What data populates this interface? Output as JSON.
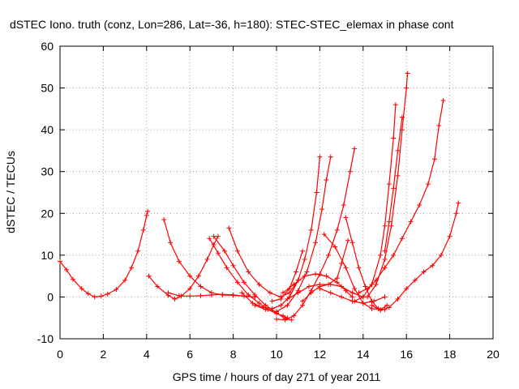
{
  "chart_data": {
    "type": "scatter",
    "title": "dSTEC Iono. truth (conz, Lon=286, Lat=-36, h=180): STEC-STEC_elemax in phase cont",
    "xlabel": "GPS time / hours of day 271 of year 2011",
    "ylabel": "dSTEC  / TECUs",
    "xlim": [
      0,
      20
    ],
    "ylim": [
      -10,
      60
    ],
    "xticks": [
      0,
      2,
      4,
      6,
      8,
      10,
      12,
      14,
      16,
      18,
      20
    ],
    "yticks": [
      -10,
      0,
      10,
      20,
      30,
      40,
      50,
      60
    ],
    "grid": true,
    "marker": "+",
    "color": "#ff0000",
    "series": [
      {
        "x": [
          0,
          0.3,
          0.6,
          1.0,
          1.3,
          1.6,
          1.9,
          2.2,
          2.6,
          3.0,
          3.3,
          3.6,
          3.85,
          4.0,
          4.05
        ],
        "y": [
          8.5,
          6.5,
          4.2,
          2,
          0.8,
          0,
          0.2,
          0.7,
          1.8,
          4,
          7,
          11,
          16,
          19.5,
          20.5
        ]
      },
      {
        "x": [
          4.1,
          4.5,
          5.0,
          5.3,
          5.6,
          6.0,
          6.4,
          6.8,
          7.1,
          7.3
        ],
        "y": [
          5,
          2.5,
          0.4,
          -0.5,
          0.2,
          2,
          5,
          9,
          12.5,
          14.5
        ]
      },
      {
        "x": [
          4.8,
          5.1,
          5.5,
          6.0,
          6.5,
          7.0,
          7.5,
          8.0,
          8.5,
          9.0
        ],
        "y": [
          18.5,
          13,
          8.5,
          5,
          2.5,
          1,
          0.5,
          0.4,
          0.2,
          0
        ]
      },
      {
        "x": [
          5.0,
          5.5,
          6.0,
          6.5,
          7.0,
          7.5,
          8.0,
          8.5,
          9.0
        ],
        "y": [
          1,
          0.3,
          0.2,
          0.3,
          0.5,
          0.6,
          0.5,
          0.2,
          0
        ]
      },
      {
        "x": [
          6.9,
          7.3,
          7.7,
          8.2,
          8.7,
          9.2,
          9.6,
          10.0,
          10.3,
          10.5
        ],
        "y": [
          14,
          10.5,
          7,
          3.5,
          0.5,
          -1.5,
          -3,
          -4,
          -4.5,
          -5
        ]
      },
      {
        "x": [
          7.1,
          7.6,
          8.0,
          8.5,
          9.0,
          9.5,
          10.0,
          10.4,
          10.7
        ],
        "y": [
          14.5,
          11,
          7.5,
          3.5,
          0.5,
          -2,
          -3.8,
          -5.2,
          -5.5
        ]
      },
      {
        "x": [
          7.8,
          8.2,
          8.7,
          9.2,
          9.7,
          10.2,
          10.6,
          11.0
        ],
        "y": [
          16.5,
          11,
          6,
          3,
          1,
          0,
          1,
          4
        ]
      },
      {
        "x": [
          8.4,
          8.9,
          9.4,
          9.8,
          10.2,
          10.6,
          11.0,
          11.3,
          11.6,
          11.85,
          12.0
        ],
        "y": [
          1,
          -1.5,
          -2.5,
          -2.8,
          -2,
          0,
          4,
          9,
          16,
          25,
          33.5
        ]
      },
      {
        "x": [
          9.0,
          9.5,
          10.0,
          10.5,
          11.0,
          11.4,
          11.8,
          12.1,
          12.3,
          12.5
        ],
        "y": [
          -2,
          -3,
          -3.5,
          -2,
          1.5,
          6,
          13,
          21,
          28,
          33.5
        ]
      },
      {
        "x": [
          9.8,
          10.2,
          10.6,
          10.9,
          11.2
        ],
        "y": [
          -1,
          -0.5,
          2,
          6,
          11
        ]
      },
      {
        "x": [
          10.0,
          10.4,
          10.8,
          11.2,
          11.6,
          12.0,
          12.4,
          12.8,
          13.1,
          13.4,
          13.6
        ],
        "y": [
          -5.3,
          -5.5,
          -4.5,
          -2,
          1.5,
          5.5,
          10,
          16,
          22,
          30,
          35.5
        ]
      },
      {
        "x": [
          10.3,
          10.8,
          11.3,
          11.8,
          12.3,
          12.8,
          13.2,
          13.5
        ],
        "y": [
          1,
          3,
          5,
          5.5,
          5,
          3.5,
          1.5,
          0
        ]
      },
      {
        "x": [
          10.5,
          11.0,
          11.5,
          12.0,
          12.5,
          13.0,
          13.5,
          14.0
        ],
        "y": [
          -0.5,
          1,
          2.5,
          3,
          3,
          2.5,
          1,
          0
        ]
      },
      {
        "x": [
          11.2,
          11.6,
          12.0,
          12.4,
          12.8,
          13.0,
          13.3
        ],
        "y": [
          -1,
          1,
          2.5,
          3,
          4.5,
          8,
          13.5
        ]
      },
      {
        "x": [
          12.0,
          12.5,
          13.0,
          13.5,
          14.0,
          14.5,
          15.0
        ],
        "y": [
          2,
          1,
          0,
          -1,
          -1.5,
          -1,
          0
        ]
      },
      {
        "x": [
          12.2,
          12.7,
          13.2,
          13.6,
          14.0,
          14.4,
          14.8,
          15.1
        ],
        "y": [
          15,
          12,
          7,
          2,
          -1.5,
          -2.8,
          -3,
          -2
        ]
      },
      {
        "x": [
          13.2,
          13.5,
          13.8,
          14.1,
          14.4,
          14.7,
          15.0
        ],
        "y": [
          19,
          13,
          7,
          2.5,
          -1,
          -2.8,
          -3
        ]
      },
      {
        "x": [
          13.6,
          14.0,
          14.4,
          14.8,
          15.0,
          15.2,
          15.4,
          15.5
        ],
        "y": [
          -1,
          0,
          3,
          10,
          17,
          27,
          38,
          46
        ]
      },
      {
        "x": [
          14.2,
          14.6,
          15.0,
          15.3,
          15.6,
          15.8,
          16.0,
          16.05
        ],
        "y": [
          0,
          3,
          9,
          17,
          29,
          40,
          50,
          53.5
        ]
      },
      {
        "x": [
          13.8,
          14.2,
          14.6,
          15.0,
          15.4,
          15.8,
          16.2,
          16.6,
          17.0,
          17.3,
          17.5,
          17.7
        ],
        "y": [
          1,
          2,
          4,
          7,
          10,
          14,
          18,
          22,
          27,
          33,
          41,
          47
        ]
      },
      {
        "x": [
          14.4,
          14.8,
          15.2,
          15.6,
          16.0,
          16.4,
          16.8,
          17.2,
          17.6,
          18.0,
          18.3,
          18.4
        ],
        "y": [
          -2,
          -3.2,
          -2.5,
          -0.5,
          2,
          4,
          6,
          7.5,
          10,
          14.5,
          20,
          22.5
        ]
      },
      {
        "x": [
          15.0,
          15.2,
          15.4,
          15.6,
          15.8
        ],
        "y": [
          11,
          18,
          26,
          35,
          43
        ]
      }
    ]
  }
}
